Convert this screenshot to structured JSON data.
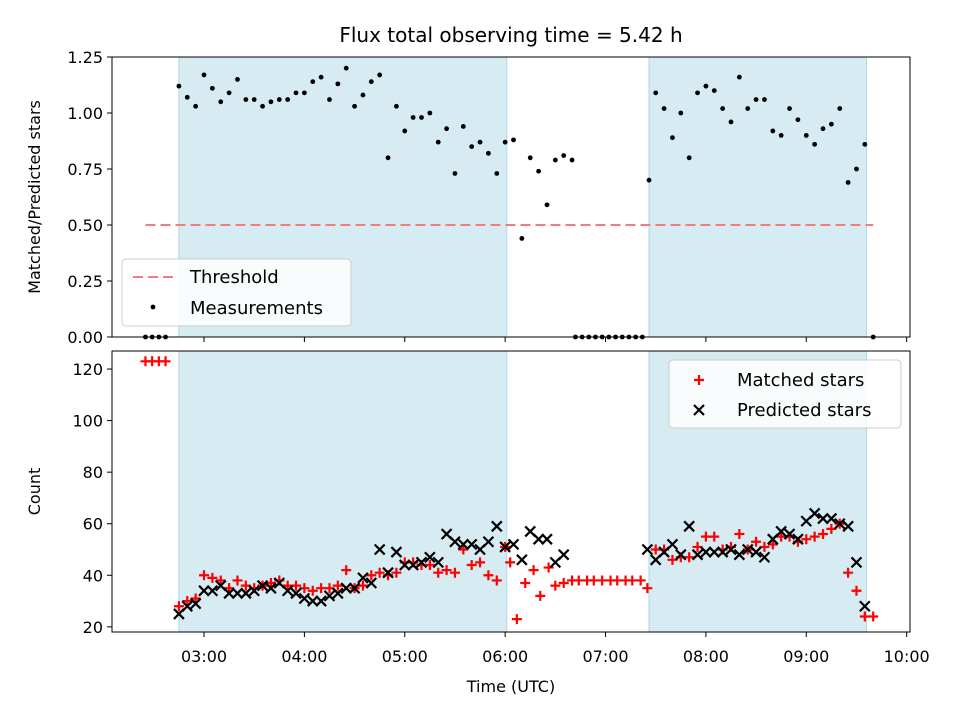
{
  "chart_data": [
    {
      "type": "scatter",
      "title": "Flux total observing time = 5.42 h",
      "xlabel": "",
      "ylabel": "Matched/Predicted stars",
      "ylim": [
        0,
        1.25
      ],
      "yticks": [
        "0.00",
        "0.25",
        "0.50",
        "0.75",
        "1.00",
        "1.25"
      ],
      "xlim": [
        "02:05",
        "10:02"
      ],
      "shaded_intervals": [
        [
          "02:45",
          "06:01"
        ],
        [
          "07:26",
          "09:36"
        ]
      ],
      "threshold": {
        "name": "Threshold",
        "value": 0.5,
        "x_range": [
          "02:25",
          "09:40"
        ],
        "color": "#f47c7c"
      },
      "legend": {
        "location": "lower-left",
        "entries": [
          "Threshold",
          "Measurements"
        ]
      },
      "series": [
        {
          "name": "Measurements",
          "color": "#000000",
          "points": [
            [
              "02:25",
              0
            ],
            [
              "02:29",
              0
            ],
            [
              "02:33",
              0
            ],
            [
              "02:37",
              0
            ],
            [
              "02:45",
              1.12
            ],
            [
              "02:50",
              1.07
            ],
            [
              "02:55",
              1.03
            ],
            [
              "03:00",
              1.17
            ],
            [
              "03:05",
              1.11
            ],
            [
              "03:10",
              1.05
            ],
            [
              "03:15",
              1.09
            ],
            [
              "03:20",
              1.15
            ],
            [
              "03:25",
              1.06
            ],
            [
              "03:30",
              1.06
            ],
            [
              "03:35",
              1.03
            ],
            [
              "03:40",
              1.05
            ],
            [
              "03:45",
              1.06
            ],
            [
              "03:50",
              1.06
            ],
            [
              "03:55",
              1.09
            ],
            [
              "04:00",
              1.09
            ],
            [
              "04:05",
              1.14
            ],
            [
              "04:10",
              1.16
            ],
            [
              "04:15",
              1.06
            ],
            [
              "04:20",
              1.13
            ],
            [
              "04:25",
              1.2
            ],
            [
              "04:30",
              1.03
            ],
            [
              "04:35",
              1.08
            ],
            [
              "04:40",
              1.14
            ],
            [
              "04:45",
              1.17
            ],
            [
              "04:50",
              0.8
            ],
            [
              "04:55",
              1.03
            ],
            [
              "05:00",
              0.92
            ],
            [
              "05:05",
              0.98
            ],
            [
              "05:10",
              0.98
            ],
            [
              "05:15",
              1.0
            ],
            [
              "05:20",
              0.87
            ],
            [
              "05:25",
              0.93
            ],
            [
              "05:30",
              0.73
            ],
            [
              "05:35",
              0.94
            ],
            [
              "05:40",
              0.85
            ],
            [
              "05:45",
              0.87
            ],
            [
              "05:50",
              0.82
            ],
            [
              "05:55",
              0.73
            ],
            [
              "06:00",
              0.87
            ],
            [
              "06:05",
              0.88
            ],
            [
              "06:10",
              0.44
            ],
            [
              "06:15",
              0.8
            ],
            [
              "06:20",
              0.74
            ],
            [
              "06:25",
              0.59
            ],
            [
              "06:30",
              0.79
            ],
            [
              "06:35",
              0.81
            ],
            [
              "06:40",
              0.79
            ],
            [
              "06:42",
              0
            ],
            [
              "06:46",
              0
            ],
            [
              "06:50",
              0
            ],
            [
              "06:54",
              0
            ],
            [
              "06:58",
              0
            ],
            [
              "07:02",
              0
            ],
            [
              "07:06",
              0
            ],
            [
              "07:10",
              0
            ],
            [
              "07:14",
              0
            ],
            [
              "07:18",
              0
            ],
            [
              "07:22",
              0
            ],
            [
              "07:26",
              0.7
            ],
            [
              "07:30",
              1.09
            ],
            [
              "07:35",
              1.02
            ],
            [
              "07:40",
              0.89
            ],
            [
              "07:45",
              1.0
            ],
            [
              "07:50",
              0.8
            ],
            [
              "07:55",
              1.09
            ],
            [
              "08:00",
              1.12
            ],
            [
              "08:05",
              1.1
            ],
            [
              "08:10",
              1.02
            ],
            [
              "08:15",
              0.96
            ],
            [
              "08:20",
              1.16
            ],
            [
              "08:25",
              1.02
            ],
            [
              "08:30",
              1.06
            ],
            [
              "08:35",
              1.06
            ],
            [
              "08:40",
              0.92
            ],
            [
              "08:45",
              0.9
            ],
            [
              "08:50",
              1.02
            ],
            [
              "08:55",
              0.97
            ],
            [
              "09:00",
              0.9
            ],
            [
              "09:05",
              0.86
            ],
            [
              "09:10",
              0.93
            ],
            [
              "09:15",
              0.95
            ],
            [
              "09:20",
              1.02
            ],
            [
              "09:25",
              0.69
            ],
            [
              "09:30",
              0.75
            ],
            [
              "09:35",
              0.86
            ],
            [
              "09:40",
              0
            ]
          ]
        }
      ]
    },
    {
      "type": "scatter",
      "title": "",
      "xlabel": "Time (UTC)",
      "ylabel": "Count",
      "ylim": [
        18,
        127
      ],
      "yticks": [
        "20",
        "40",
        "60",
        "80",
        "100",
        "120"
      ],
      "xlim": [
        "02:05",
        "10:02"
      ],
      "xticks": [
        "03:00",
        "04:00",
        "05:00",
        "06:00",
        "07:00",
        "08:00",
        "09:00",
        "10:00"
      ],
      "shaded_intervals": [
        [
          "02:45",
          "06:01"
        ],
        [
          "07:26",
          "09:36"
        ]
      ],
      "legend": {
        "location": "upper-right",
        "entries": [
          "Matched stars",
          "Predicted stars"
        ]
      },
      "series": [
        {
          "name": "Matched stars",
          "marker": "plus",
          "color": "#ff0000",
          "points": [
            [
              "02:25",
              123
            ],
            [
              "02:29",
              123
            ],
            [
              "02:33",
              123
            ],
            [
              "02:37",
              123
            ],
            [
              "02:45",
              28
            ],
            [
              "02:50",
              30
            ],
            [
              "02:55",
              31
            ],
            [
              "03:00",
              40
            ],
            [
              "03:05",
              39
            ],
            [
              "03:10",
              38
            ],
            [
              "03:15",
              35
            ],
            [
              "03:20",
              38
            ],
            [
              "03:25",
              36
            ],
            [
              "03:30",
              35
            ],
            [
              "03:35",
              36
            ],
            [
              "03:40",
              37
            ],
            [
              "03:45",
              38
            ],
            [
              "03:50",
              36
            ],
            [
              "03:55",
              36
            ],
            [
              "04:00",
              35
            ],
            [
              "04:05",
              34
            ],
            [
              "04:10",
              35
            ],
            [
              "04:15",
              35
            ],
            [
              "04:20",
              36
            ],
            [
              "04:25",
              42
            ],
            [
              "04:30",
              35
            ],
            [
              "04:35",
              36
            ],
            [
              "04:40",
              40
            ],
            [
              "04:45",
              41
            ],
            [
              "04:50",
              40
            ],
            [
              "04:55",
              41
            ],
            [
              "05:00",
              45
            ],
            [
              "05:05",
              45
            ],
            [
              "05:10",
              44
            ],
            [
              "05:15",
              44
            ],
            [
              "05:20",
              41
            ],
            [
              "05:25",
              42
            ],
            [
              "05:30",
              41
            ],
            [
              "05:35",
              50
            ],
            [
              "05:40",
              44
            ],
            [
              "05:45",
              45
            ],
            [
              "05:50",
              40
            ],
            [
              "05:55",
              38
            ],
            [
              "06:00",
              51
            ],
            [
              "06:03",
              45
            ],
            [
              "06:07",
              23
            ],
            [
              "06:12",
              37
            ],
            [
              "06:17",
              42
            ],
            [
              "06:21",
              32
            ],
            [
              "06:26",
              43
            ],
            [
              "06:30",
              36
            ],
            [
              "06:35",
              37
            ],
            [
              "06:40",
              38
            ],
            [
              "06:44",
              38
            ],
            [
              "06:49",
              38
            ],
            [
              "06:53",
              38
            ],
            [
              "06:58",
              38
            ],
            [
              "07:03",
              38
            ],
            [
              "07:07",
              38
            ],
            [
              "07:12",
              38
            ],
            [
              "07:16",
              38
            ],
            [
              "07:21",
              38
            ],
            [
              "07:25",
              35
            ],
            [
              "07:30",
              50
            ],
            [
              "07:35",
              50
            ],
            [
              "07:40",
              46
            ],
            [
              "07:45",
              47
            ],
            [
              "07:50",
              47
            ],
            [
              "07:55",
              51
            ],
            [
              "08:00",
              55
            ],
            [
              "08:05",
              55
            ],
            [
              "08:10",
              50
            ],
            [
              "08:15",
              51
            ],
            [
              "08:20",
              56
            ],
            [
              "08:25",
              50
            ],
            [
              "08:30",
              53
            ],
            [
              "08:35",
              51
            ],
            [
              "08:40",
              52
            ],
            [
              "08:45",
              55
            ],
            [
              "08:50",
              55
            ],
            [
              "08:55",
              53
            ],
            [
              "09:00",
              54
            ],
            [
              "09:05",
              55
            ],
            [
              "09:10",
              56
            ],
            [
              "09:15",
              58
            ],
            [
              "09:20",
              60
            ],
            [
              "09:25",
              41
            ],
            [
              "09:30",
              34
            ],
            [
              "09:35",
              24
            ],
            [
              "09:40",
              24
            ]
          ]
        },
        {
          "name": "Predicted stars",
          "marker": "x",
          "color": "#000000",
          "points": [
            [
              "02:45",
              25
            ],
            [
              "02:50",
              28
            ],
            [
              "02:55",
              29
            ],
            [
              "03:00",
              34
            ],
            [
              "03:05",
              34
            ],
            [
              "03:10",
              36
            ],
            [
              "03:15",
              33
            ],
            [
              "03:20",
              33
            ],
            [
              "03:25",
              33
            ],
            [
              "03:30",
              34
            ],
            [
              "03:35",
              36
            ],
            [
              "03:40",
              35
            ],
            [
              "03:45",
              37
            ],
            [
              "03:50",
              34
            ],
            [
              "03:55",
              33
            ],
            [
              "04:00",
              31
            ],
            [
              "04:05",
              30
            ],
            [
              "04:10",
              30
            ],
            [
              "04:15",
              32
            ],
            [
              "04:20",
              33
            ],
            [
              "04:25",
              35
            ],
            [
              "04:30",
              35
            ],
            [
              "04:35",
              39
            ],
            [
              "04:40",
              37
            ],
            [
              "04:45",
              50
            ],
            [
              "04:50",
              41
            ],
            [
              "04:55",
              49
            ],
            [
              "05:00",
              44
            ],
            [
              "05:05",
              44
            ],
            [
              "05:10",
              45
            ],
            [
              "05:15",
              47
            ],
            [
              "05:20",
              45
            ],
            [
              "05:25",
              56
            ],
            [
              "05:30",
              53
            ],
            [
              "05:35",
              52
            ],
            [
              "05:40",
              52
            ],
            [
              "05:45",
              50
            ],
            [
              "05:50",
              53
            ],
            [
              "05:55",
              59
            ],
            [
              "06:00",
              51
            ],
            [
              "06:05",
              52
            ],
            [
              "06:10",
              46
            ],
            [
              "06:15",
              57
            ],
            [
              "06:20",
              54
            ],
            [
              "06:25",
              54
            ],
            [
              "06:30",
              45
            ],
            [
              "06:35",
              48
            ],
            [
              "07:25",
              50
            ],
            [
              "07:30",
              46
            ],
            [
              "07:35",
              49
            ],
            [
              "07:40",
              52
            ],
            [
              "07:45",
              48
            ],
            [
              "07:50",
              59
            ],
            [
              "07:55",
              48
            ],
            [
              "08:00",
              49
            ],
            [
              "08:05",
              49
            ],
            [
              "08:10",
              49
            ],
            [
              "08:15",
              50
            ],
            [
              "08:20",
              48
            ],
            [
              "08:25",
              50
            ],
            [
              "08:30",
              49
            ],
            [
              "08:35",
              47
            ],
            [
              "08:40",
              54
            ],
            [
              "08:45",
              57
            ],
            [
              "08:50",
              56
            ],
            [
              "08:55",
              54
            ],
            [
              "09:00",
              61
            ],
            [
              "09:05",
              64
            ],
            [
              "09:10",
              62
            ],
            [
              "09:15",
              62
            ],
            [
              "09:20",
              60
            ],
            [
              "09:25",
              59
            ],
            [
              "09:30",
              45
            ],
            [
              "09:35",
              28
            ]
          ]
        }
      ]
    }
  ]
}
